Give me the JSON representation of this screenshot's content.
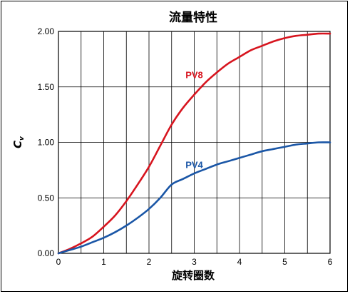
{
  "chart_data": {
    "type": "line",
    "title": "流量特性",
    "xlabel": "旋转圈数",
    "ylabel": "C",
    "ylabel_sub": "v",
    "xlim": [
      0,
      6
    ],
    "ylim": [
      0,
      2
    ],
    "x_ticks": [
      "0",
      "1",
      "2",
      "3",
      "4",
      "5",
      "6"
    ],
    "y_ticks": [
      "0.00",
      "0.50",
      "1.00",
      "1.50",
      "2.00"
    ],
    "x_grid_step": 0.5,
    "grid": true,
    "series": [
      {
        "name": "PV8",
        "color": "#d7141e",
        "label_at": [
          3.0,
          1.58
        ],
        "points": [
          [
            0,
            0.0
          ],
          [
            0.25,
            0.04
          ],
          [
            0.5,
            0.09
          ],
          [
            0.75,
            0.15
          ],
          [
            1.0,
            0.24
          ],
          [
            1.25,
            0.34
          ],
          [
            1.5,
            0.47
          ],
          [
            1.75,
            0.62
          ],
          [
            2.0,
            0.78
          ],
          [
            2.25,
            0.97
          ],
          [
            2.5,
            1.16
          ],
          [
            2.75,
            1.31
          ],
          [
            3.0,
            1.43
          ],
          [
            3.25,
            1.54
          ],
          [
            3.5,
            1.63
          ],
          [
            3.75,
            1.71
          ],
          [
            4.0,
            1.77
          ],
          [
            4.25,
            1.83
          ],
          [
            4.5,
            1.87
          ],
          [
            4.75,
            1.91
          ],
          [
            5.0,
            1.94
          ],
          [
            5.25,
            1.96
          ],
          [
            5.5,
            1.97
          ],
          [
            5.75,
            1.98
          ],
          [
            6.0,
            1.98
          ]
        ]
      },
      {
        "name": "PV4",
        "color": "#1a56a6",
        "label_at": [
          3.0,
          0.77
        ],
        "points": [
          [
            0,
            0.0
          ],
          [
            0.25,
            0.03
          ],
          [
            0.5,
            0.06
          ],
          [
            0.75,
            0.1
          ],
          [
            1.0,
            0.14
          ],
          [
            1.25,
            0.19
          ],
          [
            1.5,
            0.25
          ],
          [
            1.75,
            0.32
          ],
          [
            2.0,
            0.4
          ],
          [
            2.25,
            0.5
          ],
          [
            2.5,
            0.62
          ],
          [
            2.75,
            0.67
          ],
          [
            3.0,
            0.72
          ],
          [
            3.25,
            0.76
          ],
          [
            3.5,
            0.8
          ],
          [
            3.75,
            0.83
          ],
          [
            4.0,
            0.86
          ],
          [
            4.25,
            0.89
          ],
          [
            4.5,
            0.92
          ],
          [
            4.75,
            0.94
          ],
          [
            5.0,
            0.96
          ],
          [
            5.25,
            0.98
          ],
          [
            5.5,
            0.99
          ],
          [
            5.75,
            1.0
          ],
          [
            6.0,
            1.0
          ]
        ]
      }
    ]
  }
}
